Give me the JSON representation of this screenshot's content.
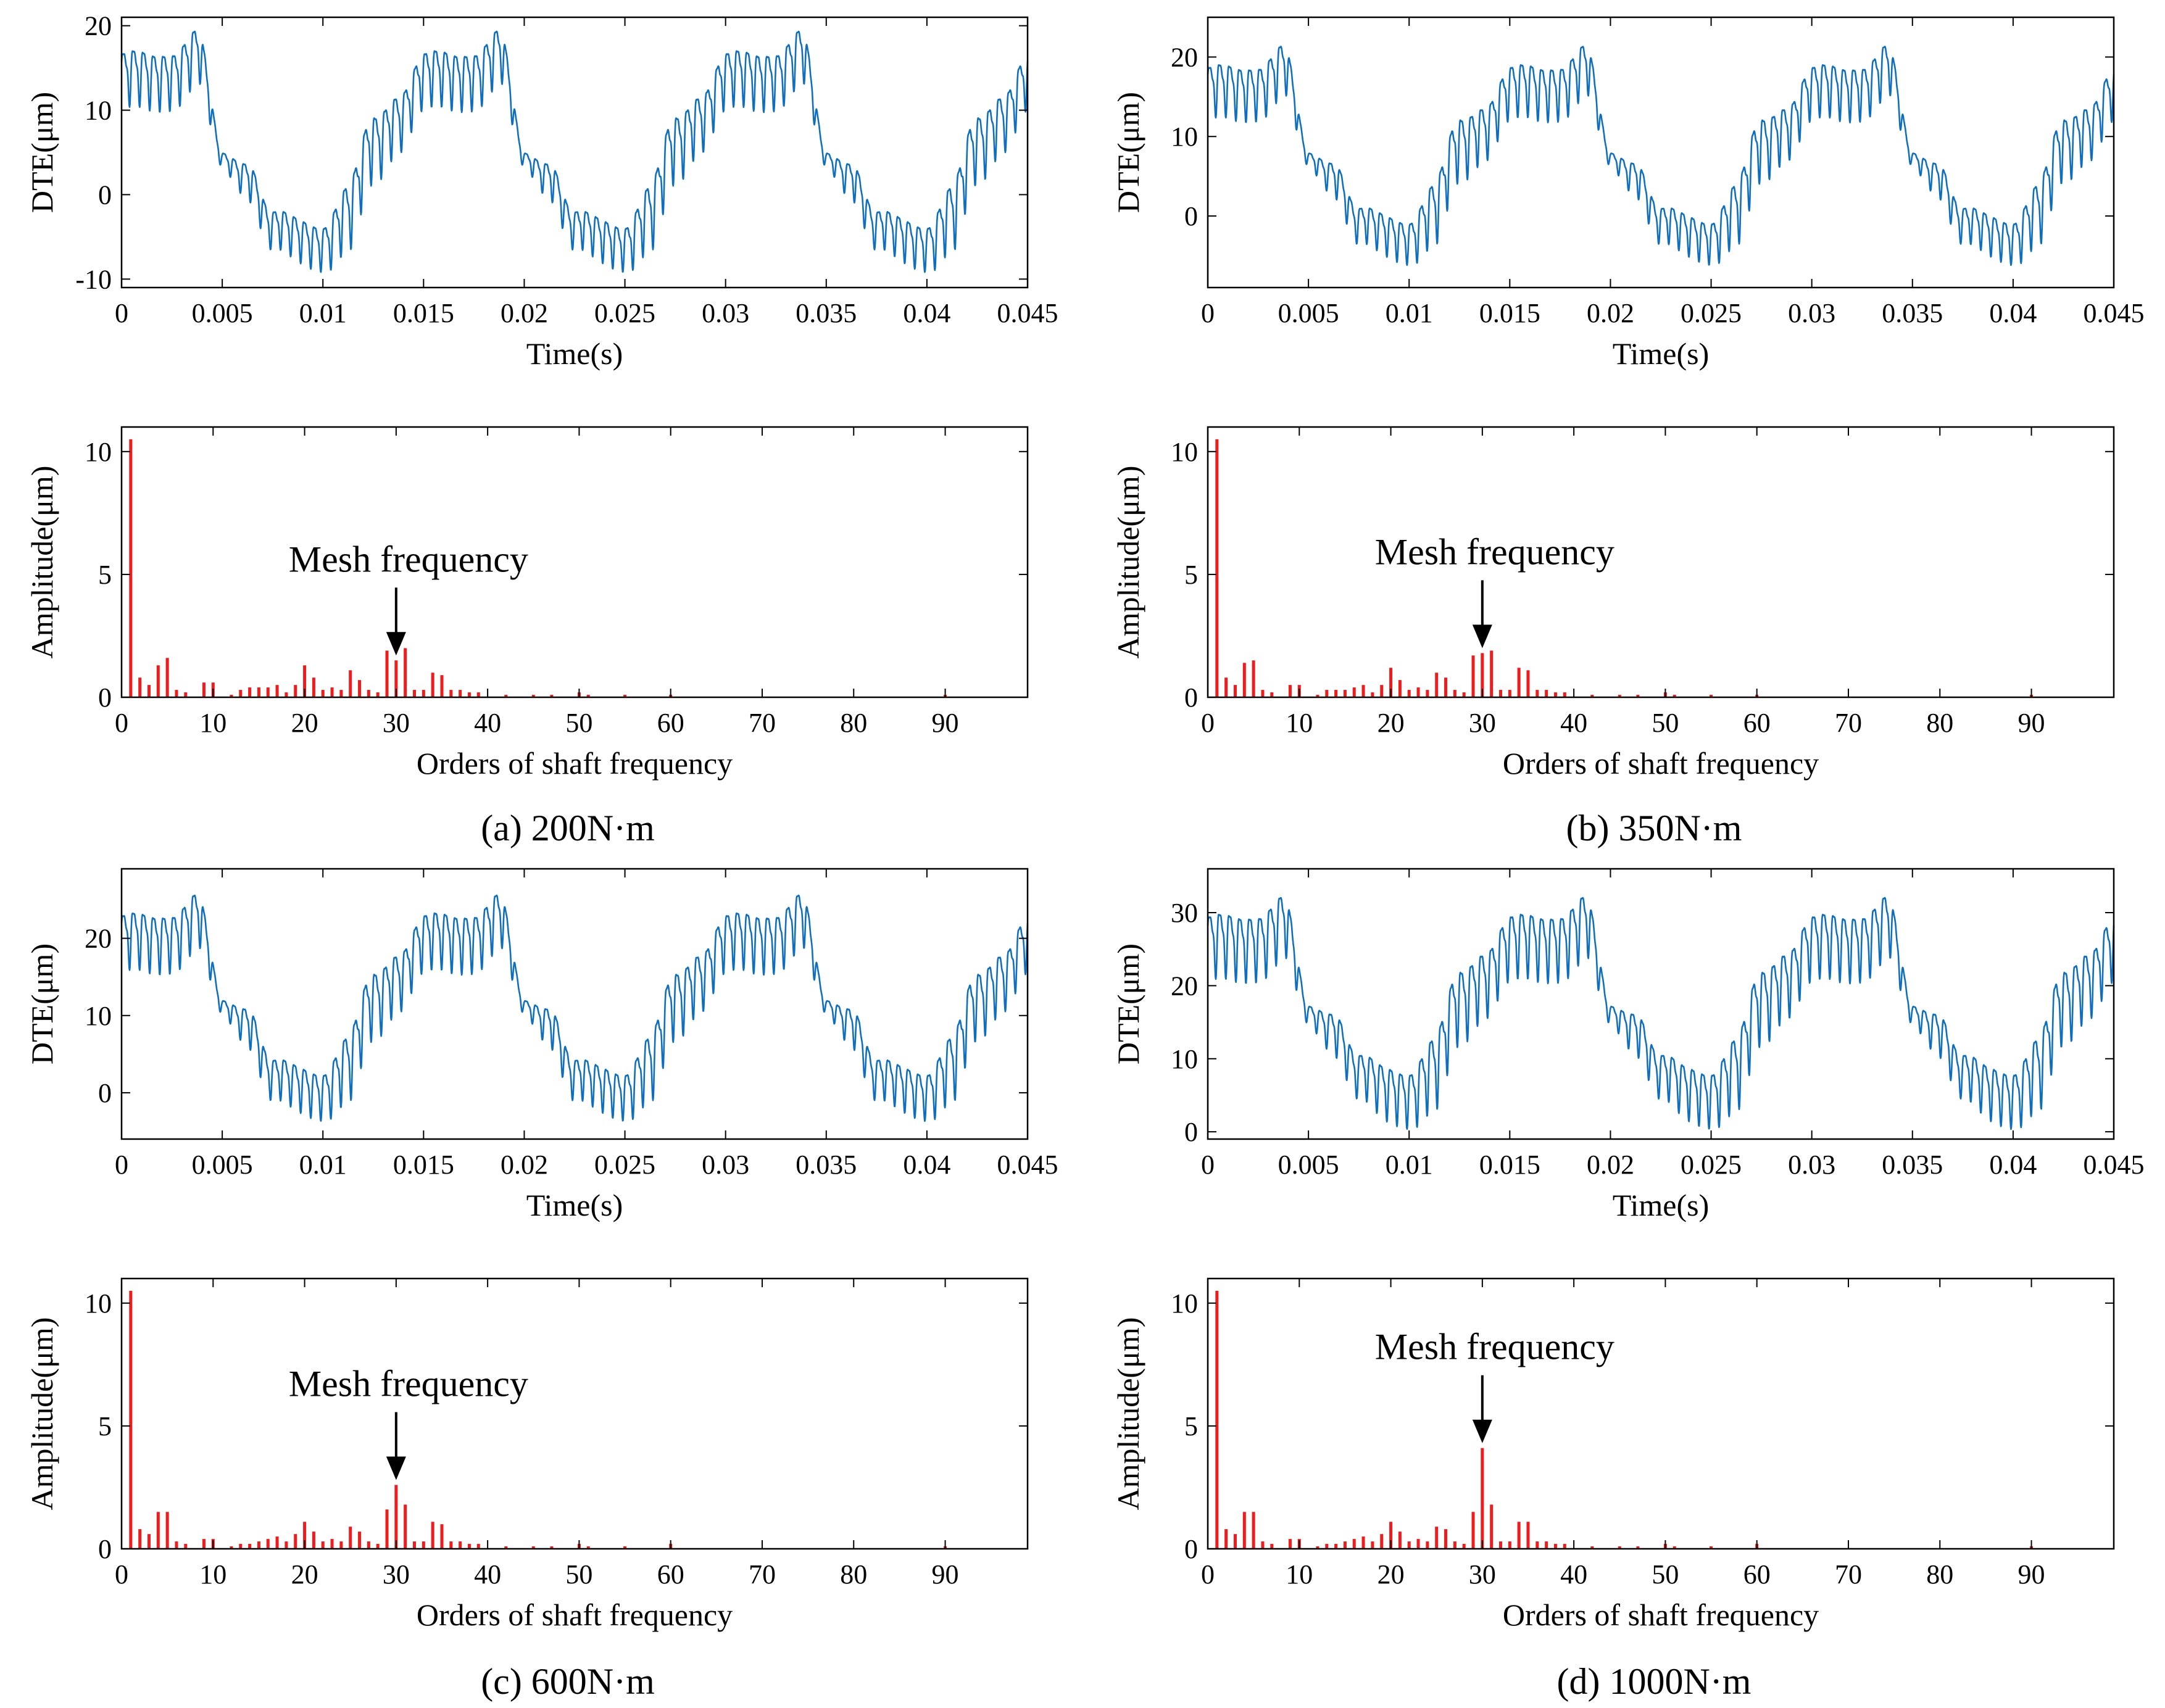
{
  "colors": {
    "time_line": "#0f6fbd",
    "spectrum_bar": "#ee1c1c",
    "axis": "#000000",
    "background": "#ffffff"
  },
  "chart_data": [
    {
      "id": "a-time",
      "type": "line",
      "panel": "a",
      "title": "",
      "xlabel": "Time(s)",
      "ylabel": "DTE(μm)",
      "xlim": [
        0,
        0.045
      ],
      "ylim": [
        -11,
        21
      ],
      "xticks": [
        0,
        0.005,
        0.01,
        0.015,
        0.02,
        0.025,
        0.03,
        0.035,
        0.04,
        0.045
      ],
      "xtick_labels": [
        "0",
        "0.005",
        "0.01",
        "0.015",
        "0.02",
        "0.025",
        "0.03",
        "0.035",
        "0.04",
        "0.045"
      ],
      "yticks": [
        -10,
        0,
        10,
        20
      ],
      "ytick_labels": [
        "-10",
        "0",
        "10",
        "20"
      ],
      "signal": {
        "period_s": 0.015,
        "mesh_order": 30,
        "base_levels": [
          14,
          14,
          15,
          17,
          4,
          3,
          -4,
          -5,
          -5,
          -2,
          6,
          10,
          14
        ],
        "ripple_levels": [
          4.5,
          4.5,
          4.5,
          4.5,
          1.0,
          3.0,
          3.0,
          3.5,
          3.5,
          5.5,
          5.5,
          4.5,
          4.5
        ]
      }
    },
    {
      "id": "b-time",
      "type": "line",
      "panel": "b",
      "title": "",
      "xlabel": "Time(s)",
      "ylabel": "DTE(μm)",
      "xlim": [
        0,
        0.045
      ],
      "ylim": [
        -9,
        25
      ],
      "xticks": [
        0,
        0.005,
        0.01,
        0.015,
        0.02,
        0.025,
        0.03,
        0.035,
        0.04,
        0.045
      ],
      "xtick_labels": [
        "0",
        "0.005",
        "0.01",
        "0.015",
        "0.02",
        "0.025",
        "0.03",
        "0.035",
        "0.04",
        "0.045"
      ],
      "yticks": [
        0,
        10,
        20
      ],
      "ytick_labels": [
        "0",
        "10",
        "20"
      ],
      "signal": {
        "period_s": 0.015,
        "mesh_order": 30,
        "base_levels": [
          16,
          16,
          17,
          19,
          7,
          6,
          -1,
          -2,
          -2,
          1,
          9,
          12,
          16
        ],
        "ripple_levels": [
          4.5,
          4.5,
          4.5,
          4.5,
          1.0,
          3.0,
          3.0,
          3.5,
          3.5,
          5.5,
          5.5,
          4.5,
          4.5
        ]
      }
    },
    {
      "id": "c-time",
      "type": "line",
      "panel": "c",
      "title": "",
      "xlabel": "Time(s)",
      "ylabel": "DTE(μm)",
      "xlim": [
        0,
        0.045
      ],
      "ylim": [
        -6,
        29
      ],
      "xticks": [
        0,
        0.005,
        0.01,
        0.015,
        0.02,
        0.025,
        0.03,
        0.035,
        0.04,
        0.045
      ],
      "xtick_labels": [
        "0",
        "0.005",
        "0.01",
        "0.015",
        "0.02",
        "0.025",
        "0.03",
        "0.035",
        "0.04",
        "0.045"
      ],
      "yticks": [
        0,
        10,
        20
      ],
      "ytick_labels": [
        "0",
        "10",
        "20"
      ],
      "signal": {
        "period_s": 0.015,
        "mesh_order": 30,
        "base_levels": [
          20,
          20,
          21,
          23,
          11,
          10,
          2,
          1,
          1,
          4,
          12,
          16,
          20
        ],
        "ripple_levels": [
          5.0,
          5.0,
          5.0,
          5.0,
          1.0,
          3.5,
          3.5,
          4.0,
          4.0,
          6.0,
          6.0,
          5.0,
          5.0
        ]
      }
    },
    {
      "id": "d-time",
      "type": "line",
      "panel": "d",
      "title": "",
      "xlabel": "Time(s)",
      "ylabel": "DTE(μm)",
      "xlim": [
        0,
        0.045
      ],
      "ylim": [
        -1,
        36
      ],
      "xticks": [
        0,
        0.005,
        0.01,
        0.015,
        0.02,
        0.025,
        0.03,
        0.035,
        0.04,
        0.045
      ],
      "xtick_labels": [
        "0",
        "0.005",
        "0.01",
        "0.015",
        "0.02",
        "0.025",
        "0.03",
        "0.035",
        "0.04",
        "0.045"
      ],
      "yticks": [
        0,
        10,
        20,
        30
      ],
      "ytick_labels": [
        "0",
        "10",
        "20",
        "30"
      ],
      "signal": {
        "period_s": 0.015,
        "mesh_order": 30,
        "base_levels": [
          26,
          26,
          27,
          29,
          16,
          15,
          8,
          6,
          6,
          9,
          18,
          22,
          26
        ],
        "ripple_levels": [
          6.0,
          6.0,
          6.0,
          6.0,
          1.5,
          4.0,
          4.0,
          5.0,
          5.0,
          7.0,
          7.0,
          6.0,
          6.0
        ]
      }
    },
    {
      "id": "a-spec",
      "type": "bar",
      "panel": "a",
      "title": "",
      "xlabel": "Orders of shaft frequency",
      "ylabel": "Amplitude(μm)",
      "xlim": [
        0,
        99
      ],
      "ylim": [
        0,
        11
      ],
      "xticks": [
        0,
        10,
        20,
        30,
        40,
        50,
        60,
        70,
        80,
        90
      ],
      "xtick_labels": [
        "0",
        "10",
        "20",
        "30",
        "40",
        "50",
        "60",
        "70",
        "80",
        "90"
      ],
      "yticks": [
        0,
        5,
        10
      ],
      "ytick_labels": [
        "0",
        "5",
        "10"
      ],
      "orders": [
        1,
        2,
        3,
        4,
        5,
        6,
        7,
        9,
        10,
        12,
        13,
        14,
        15,
        16,
        17,
        18,
        19,
        20,
        21,
        22,
        23,
        24,
        25,
        26,
        27,
        28,
        29,
        30,
        31,
        32,
        33,
        34,
        35,
        36,
        37,
        38,
        39,
        42,
        45,
        47,
        50,
        51,
        55,
        60,
        90
      ],
      "values": [
        10.5,
        0.8,
        0.5,
        1.3,
        1.6,
        0.3,
        0.2,
        0.6,
        0.6,
        0.1,
        0.3,
        0.4,
        0.4,
        0.4,
        0.5,
        0.2,
        0.5,
        1.3,
        0.8,
        0.3,
        0.4,
        0.3,
        1.1,
        0.7,
        0.3,
        0.2,
        1.9,
        1.5,
        2.0,
        0.3,
        0.3,
        1.0,
        0.9,
        0.3,
        0.3,
        0.2,
        0.2,
        0.1,
        0.1,
        0.1,
        0.2,
        0.1,
        0.1,
        0.1,
        0.1
      ],
      "annotation": {
        "text": "Mesh frequency",
        "x": 30
      }
    },
    {
      "id": "b-spec",
      "type": "bar",
      "panel": "b",
      "title": "",
      "xlabel": "Orders of shaft frequency",
      "ylabel": "Amplitude(μm)",
      "xlim": [
        0,
        99
      ],
      "ylim": [
        0,
        11
      ],
      "xticks": [
        0,
        10,
        20,
        30,
        40,
        50,
        60,
        70,
        80,
        90
      ],
      "xtick_labels": [
        "0",
        "10",
        "20",
        "30",
        "40",
        "50",
        "60",
        "70",
        "80",
        "90"
      ],
      "yticks": [
        0,
        5,
        10
      ],
      "ytick_labels": [
        "0",
        "5",
        "10"
      ],
      "orders": [
        1,
        2,
        3,
        4,
        5,
        6,
        7,
        9,
        10,
        12,
        13,
        14,
        15,
        16,
        17,
        18,
        19,
        20,
        21,
        22,
        23,
        24,
        25,
        26,
        27,
        28,
        29,
        30,
        31,
        32,
        33,
        34,
        35,
        36,
        37,
        38,
        39,
        42,
        45,
        47,
        50,
        51,
        55,
        60,
        90
      ],
      "values": [
        10.5,
        0.8,
        0.5,
        1.4,
        1.5,
        0.3,
        0.2,
        0.5,
        0.5,
        0.1,
        0.3,
        0.3,
        0.3,
        0.4,
        0.5,
        0.2,
        0.5,
        1.2,
        0.7,
        0.3,
        0.4,
        0.3,
        1.0,
        0.8,
        0.3,
        0.2,
        1.7,
        1.8,
        1.9,
        0.3,
        0.3,
        1.2,
        1.1,
        0.3,
        0.3,
        0.2,
        0.2,
        0.1,
        0.1,
        0.1,
        0.2,
        0.1,
        0.1,
        0.1,
        0.1
      ],
      "annotation": {
        "text": "Mesh frequency",
        "x": 30
      }
    },
    {
      "id": "c-spec",
      "type": "bar",
      "panel": "c",
      "title": "",
      "xlabel": "Orders of shaft frequency",
      "ylabel": "Amplitude(μm)",
      "xlim": [
        0,
        99
      ],
      "ylim": [
        0,
        11
      ],
      "xticks": [
        0,
        10,
        20,
        30,
        40,
        50,
        60,
        70,
        80,
        90
      ],
      "xtick_labels": [
        "0",
        "10",
        "20",
        "30",
        "40",
        "50",
        "60",
        "70",
        "80",
        "90"
      ],
      "yticks": [
        0,
        5,
        10
      ],
      "ytick_labels": [
        "0",
        "5",
        "10"
      ],
      "orders": [
        1,
        2,
        3,
        4,
        5,
        6,
        7,
        9,
        10,
        12,
        13,
        14,
        15,
        16,
        17,
        18,
        19,
        20,
        21,
        22,
        23,
        24,
        25,
        26,
        27,
        28,
        29,
        30,
        31,
        32,
        33,
        34,
        35,
        36,
        37,
        38,
        39,
        42,
        45,
        47,
        50,
        51,
        55,
        60,
        90
      ],
      "values": [
        10.5,
        0.8,
        0.6,
        1.5,
        1.5,
        0.3,
        0.2,
        0.4,
        0.4,
        0.1,
        0.2,
        0.2,
        0.3,
        0.4,
        0.5,
        0.3,
        0.6,
        1.1,
        0.7,
        0.3,
        0.4,
        0.3,
        0.9,
        0.7,
        0.3,
        0.2,
        1.6,
        2.6,
        1.8,
        0.3,
        0.3,
        1.1,
        1.0,
        0.3,
        0.3,
        0.2,
        0.2,
        0.1,
        0.1,
        0.1,
        0.2,
        0.1,
        0.1,
        0.2,
        0.1
      ],
      "annotation": {
        "text": "Mesh frequency",
        "x": 30
      }
    },
    {
      "id": "d-spec",
      "type": "bar",
      "panel": "d",
      "title": "",
      "xlabel": "Orders of shaft frequency",
      "ylabel": "Amplitude(μm)",
      "xlim": [
        0,
        99
      ],
      "ylim": [
        0,
        11
      ],
      "xticks": [
        0,
        10,
        20,
        30,
        40,
        50,
        60,
        70,
        80,
        90
      ],
      "xtick_labels": [
        "0",
        "10",
        "20",
        "30",
        "40",
        "50",
        "60",
        "70",
        "80",
        "90"
      ],
      "yticks": [
        0,
        5,
        10
      ],
      "ytick_labels": [
        "0",
        "5",
        "10"
      ],
      "orders": [
        1,
        2,
        3,
        4,
        5,
        6,
        7,
        9,
        10,
        12,
        13,
        14,
        15,
        16,
        17,
        18,
        19,
        20,
        21,
        22,
        23,
        24,
        25,
        26,
        27,
        28,
        29,
        30,
        31,
        32,
        33,
        34,
        35,
        36,
        37,
        38,
        39,
        42,
        45,
        47,
        50,
        51,
        55,
        60,
        90
      ],
      "values": [
        10.5,
        0.8,
        0.6,
        1.5,
        1.5,
        0.3,
        0.2,
        0.4,
        0.4,
        0.1,
        0.2,
        0.2,
        0.3,
        0.4,
        0.5,
        0.3,
        0.6,
        1.1,
        0.7,
        0.3,
        0.4,
        0.3,
        0.9,
        0.8,
        0.3,
        0.2,
        1.5,
        4.1,
        1.8,
        0.3,
        0.3,
        1.1,
        1.1,
        0.3,
        0.3,
        0.2,
        0.2,
        0.1,
        0.1,
        0.1,
        0.2,
        0.1,
        0.1,
        0.2,
        0.1
      ],
      "annotation": {
        "text": "Mesh frequency",
        "x": 30
      }
    }
  ],
  "captions": {
    "a": "(a) 200N·m",
    "b": "(b) 350N·m",
    "c": "(c) 600N·m",
    "d": "(d) 1000N·m"
  }
}
